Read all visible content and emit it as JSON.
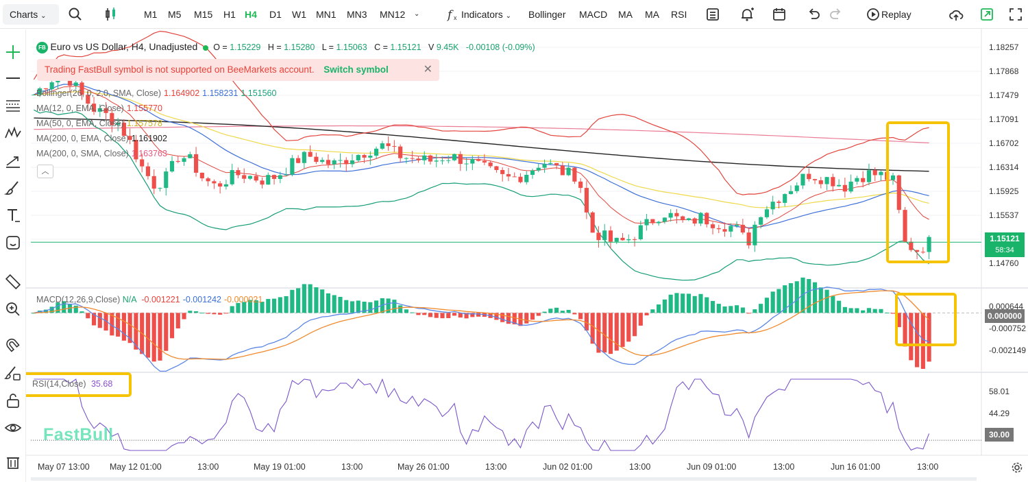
{
  "toolbar": {
    "charts": "Charts",
    "timeframes": [
      "M1",
      "M5",
      "M15",
      "H1",
      "H4",
      "D1",
      "W1",
      "MN1",
      "MN3",
      "MN12"
    ],
    "active_timeframe": "H4",
    "indicators": "Indicators",
    "quick_indicators": [
      "Bollinger",
      "MACD",
      "MA",
      "MA",
      "RSI"
    ],
    "replay": "Replay"
  },
  "symbol": {
    "badge": "FB",
    "title": "Euro vs US Dollar, H4, Unadjusted",
    "o_label": "O =",
    "o": "1.15229",
    "h_label": "H =",
    "h": "1.15280",
    "l_label": "L =",
    "l": "1.15063",
    "c_label": "C =",
    "c": "1.15121",
    "v_label": "V",
    "v": "9.45K",
    "change": "-0.00108 (-0.09%)"
  },
  "banner": {
    "text": "Trading FastBull symbol is not supported on BeeMarkets account.",
    "action": "Switch symbol"
  },
  "indicators": [
    {
      "label": "Bollinger(26, 0, 2.0, SMA, Close)",
      "values": [
        "1.164902",
        "1.158231",
        "1.151560"
      ],
      "colors": [
        "#e8423a",
        "#3a6fd8",
        "#18a37a"
      ]
    },
    {
      "label": "MA(12, 0, EMA, Close)",
      "values": [
        "1.155770"
      ],
      "colors": [
        "#e8423a"
      ]
    },
    {
      "label": "MA(50, 0, EMA, Close)",
      "values": [
        "1.157578"
      ],
      "colors": [
        "#e8d23c"
      ]
    },
    {
      "label": "MA(200, 0, EMA, Close)",
      "values": [
        "1.161902"
      ],
      "colors": [
        "#222222"
      ]
    },
    {
      "label": "MA(200, 0, SMA, Close)",
      "values": [
        "1.163763"
      ],
      "colors": [
        "#e8577e"
      ]
    }
  ],
  "macd": {
    "label": "MACD(12,26,9,Close)",
    "na": "N/A",
    "values": [
      "-0.001221",
      "-0.001242",
      "-0.000021"
    ],
    "colors": [
      "#e8423a",
      "#3a6fd8",
      "#f08a2c"
    ]
  },
  "rsi": {
    "label": "RSI(14,Close)",
    "value": "35.68"
  },
  "price_axis": [
    "1.18257",
    "1.17868",
    "1.17479",
    "1.17091",
    "1.16702",
    "1.16314",
    "1.15925",
    "1.15537",
    "1.14760"
  ],
  "current_price": {
    "price": "1.15121",
    "countdown": "58:34"
  },
  "macd_axis": [
    "0.000644",
    "-0.000752",
    "-0.002149"
  ],
  "macd_zero_tag": "0.000000",
  "rsi_axis": [
    "58.01",
    "44.29"
  ],
  "rsi_tag": "30.00",
  "time_axis": [
    "May 07 13:00",
    "May 12 01:00",
    "13:00",
    "May 19 01:00",
    "13:00",
    "May 26 01:00",
    "13:00",
    "Jun 02 01:00",
    "13:00",
    "Jun 09 01:00",
    "13:00",
    "Jun 16 01:00",
    "13:00"
  ],
  "logo": "FastBull",
  "colors": {
    "up": "#20b986",
    "down": "#ee4f4a",
    "accent": "#1db954",
    "highlight": "#f6c300"
  },
  "chart_data": {
    "type": "candlestick",
    "title": "Euro vs US Dollar, H4, Unadjusted",
    "x": [
      "May 07 13:00",
      "May 12 01:00",
      "13:00",
      "May 19 01:00",
      "13:00",
      "May 26 01:00",
      "13:00",
      "Jun 02 01:00",
      "13:00",
      "Jun 09 01:00",
      "13:00",
      "Jun 16 01:00",
      "13:00"
    ],
    "price_path": [
      1.1745,
      1.1762,
      1.1778,
      1.1768,
      1.1742,
      1.1722,
      1.1712,
      1.17,
      1.1668,
      1.1628,
      1.1602,
      1.1615,
      1.165,
      1.164,
      1.1612,
      1.16,
      1.1612,
      1.162,
      1.1615,
      1.161,
      1.1616,
      1.163,
      1.1645,
      1.1648,
      1.1638,
      1.1635,
      1.1645,
      1.1652,
      1.166,
      1.1665,
      1.165,
      1.1645,
      1.1642,
      1.164,
      1.1648,
      1.1645,
      1.164,
      1.163,
      1.162,
      1.1612,
      1.1615,
      1.1625,
      1.164,
      1.163,
      1.162,
      1.1618,
      1.153,
      1.1522,
      1.151,
      1.1515,
      1.153,
      1.1545,
      1.156,
      1.155,
      1.154,
      1.1552,
      1.1545,
      1.154,
      1.1535,
      1.151,
      1.156,
      1.1575,
      1.159,
      1.1605,
      1.162,
      1.1615,
      1.161,
      1.16,
      1.1615,
      1.162,
      1.1618,
      1.161,
      1.151,
      1.15,
      1.1512
    ],
    "ylim": [
      1.144,
      1.184
    ],
    "bollinger": {
      "upper": 1.164902,
      "middle": 1.158231,
      "lower": 1.15156
    },
    "macd": {
      "values": [
        -0.001221,
        -0.001242,
        -2.1e-05
      ],
      "ylim": [
        -0.0032,
        0.0012
      ]
    },
    "rsi": {
      "value": 35.68,
      "levels": [
        30
      ],
      "ylim": [
        22,
        68
      ]
    }
  }
}
